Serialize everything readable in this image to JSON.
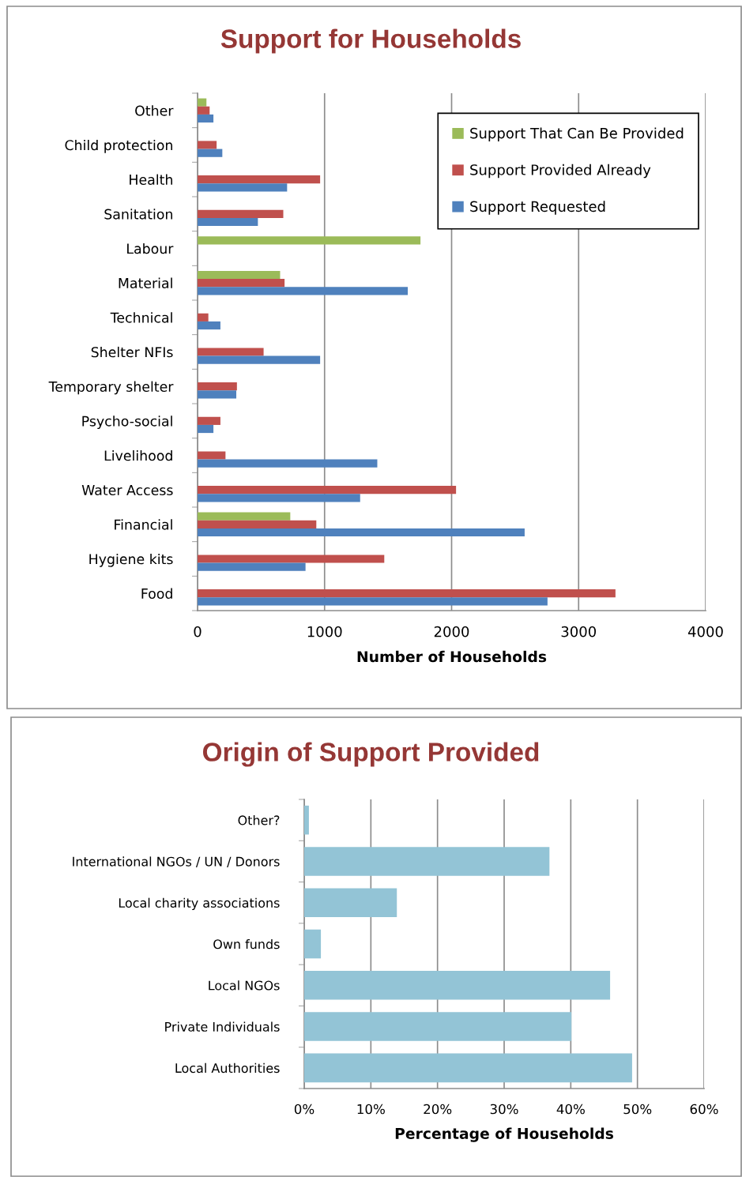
{
  "chart_data": [
    {
      "type": "bar",
      "orientation": "horizontal",
      "title": "Support for Households",
      "xlabel": "Number of Households",
      "categories": [
        "Other",
        "Child protection",
        "Health",
        "Sanitation",
        "Labour",
        "Material",
        "Technical",
        "Shelter NFIs",
        "Temporary shelter",
        "Psycho-social",
        "Livelihood",
        "Water Access",
        "Financial",
        "Hygiene kits",
        "Food"
      ],
      "series": [
        {
          "name": "Support That Can Be Provided",
          "color": "#9bbb59",
          "values": [
            70,
            null,
            null,
            null,
            1755,
            650,
            null,
            null,
            null,
            null,
            null,
            null,
            730,
            null,
            null
          ]
        },
        {
          "name": "Support Provided Already",
          "color": "#c0504d",
          "values": [
            95,
            150,
            965,
            675,
            null,
            685,
            85,
            520,
            310,
            180,
            220,
            2035,
            935,
            1470,
            3290
          ]
        },
        {
          "name": "Support Requested",
          "color": "#4f81bd",
          "values": [
            125,
            195,
            705,
            475,
            null,
            1655,
            180,
            965,
            305,
            125,
            1415,
            1280,
            2575,
            850,
            2755
          ]
        }
      ],
      "xlim": [
        0,
        4000
      ],
      "xticks": [
        0,
        1000,
        2000,
        3000,
        4000
      ],
      "grid": "x",
      "legend": "top right"
    },
    {
      "type": "bar",
      "orientation": "horizontal",
      "title": "Origin of Support Provided",
      "xlabel": "Percentage of Households",
      "categories": [
        "Other?",
        "International NGOs / UN / Donors",
        "Local charity associations",
        "Own funds",
        "Local NGOs",
        "Private Individuals",
        "Local Authorities"
      ],
      "series": [
        {
          "color": "#93c4d6",
          "values": [
            0.7,
            36.8,
            13.9,
            2.5,
            45.9,
            40.1,
            49.2
          ]
        }
      ],
      "xlim": [
        0,
        60
      ],
      "xticks": [
        {
          "value": 0,
          "label": "0%"
        },
        {
          "value": 10,
          "label": "10%"
        },
        {
          "value": 20,
          "label": "20%"
        },
        {
          "value": 30,
          "label": "30%"
        },
        {
          "value": 40,
          "label": "40%"
        },
        {
          "value": 50,
          "label": "50%"
        },
        {
          "value": 60,
          "label": "60%"
        }
      ],
      "grid": "x",
      "legend": false
    }
  ]
}
